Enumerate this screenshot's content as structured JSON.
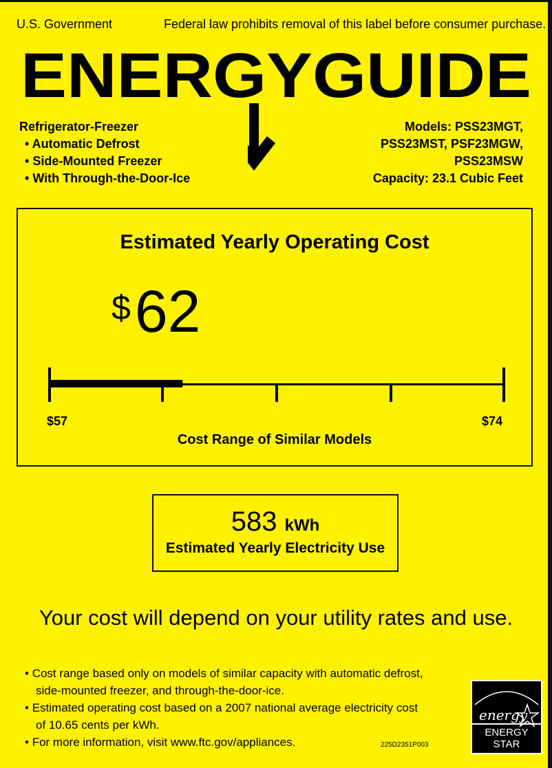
{
  "header": {
    "government": "U.S. Government",
    "law_notice": "Federal law prohibits removal of this label before consumer purchase.",
    "logo_text": "ENERGYGUIDE"
  },
  "product": {
    "type": "Refrigerator-Freezer",
    "features": [
      "Automatic Defrost",
      "Side-Mounted Freezer",
      "With Through-the-Door-Ice"
    ]
  },
  "models": {
    "lines": [
      "Models: PSS23MGT,",
      "PSS23MST, PSF23MGW,",
      "PSS23MSW"
    ],
    "capacity": "Capacity: 23.1 Cubic Feet"
  },
  "cost": {
    "title": "Estimated Yearly Operating Cost",
    "currency": "$",
    "value": "62",
    "range_min_label": "$57",
    "range_max_label": "$74",
    "range_min": 57,
    "range_max": 74,
    "indicator_value": 62,
    "range_caption": "Cost Range of Similar Models"
  },
  "electricity": {
    "value": "583",
    "unit": "kWh",
    "label": "Estimated Yearly Electricity Use"
  },
  "depend_notice": "Your cost will depend on your utility rates and use.",
  "notes": [
    [
      "Cost range based only on models of similar capacity with automatic defrost,",
      "side-mounted freezer, and through-the-door-ice."
    ],
    [
      "Estimated operating cost based on a 2007 national average electricity cost",
      "of 10.65 cents per kWh."
    ],
    [
      "For more information, visit www.ftc.gov/appliances."
    ]
  ],
  "label_code": "225D2351P003",
  "energy_star": {
    "script": "energy",
    "label": "ENERGY STAR"
  },
  "colors": {
    "background": "#fff200",
    "ink": "#000000"
  }
}
